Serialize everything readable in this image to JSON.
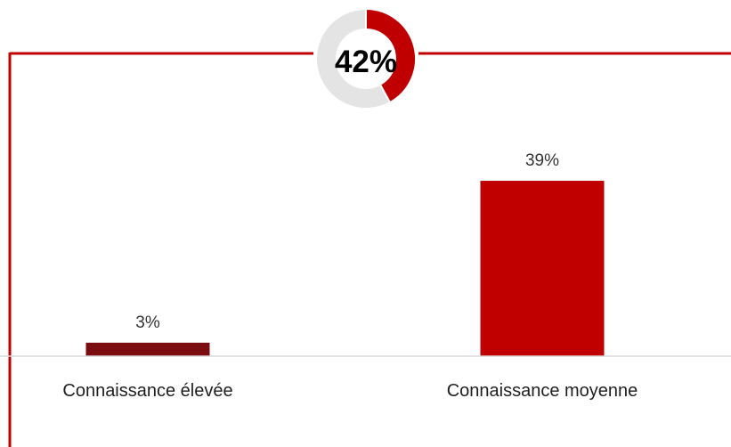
{
  "chart_data": [
    {
      "type": "bar",
      "categories": [
        "Connaissance élevée",
        "Connaissance moyenne"
      ],
      "values": [
        3,
        39
      ],
      "value_labels": [
        "3%",
        "39%"
      ],
      "colors": [
        "#7b0c10",
        "#c00000"
      ],
      "ylim": [
        0,
        45
      ]
    },
    {
      "type": "pie",
      "style": "donut",
      "total_label": "42%",
      "slices": [
        {
          "value": 42,
          "color": "#c00000"
        },
        {
          "value": 58,
          "color": "#e4e4e4"
        }
      ]
    }
  ],
  "colors": {
    "frame": "#c00000",
    "axis": "#d9d9d9"
  }
}
